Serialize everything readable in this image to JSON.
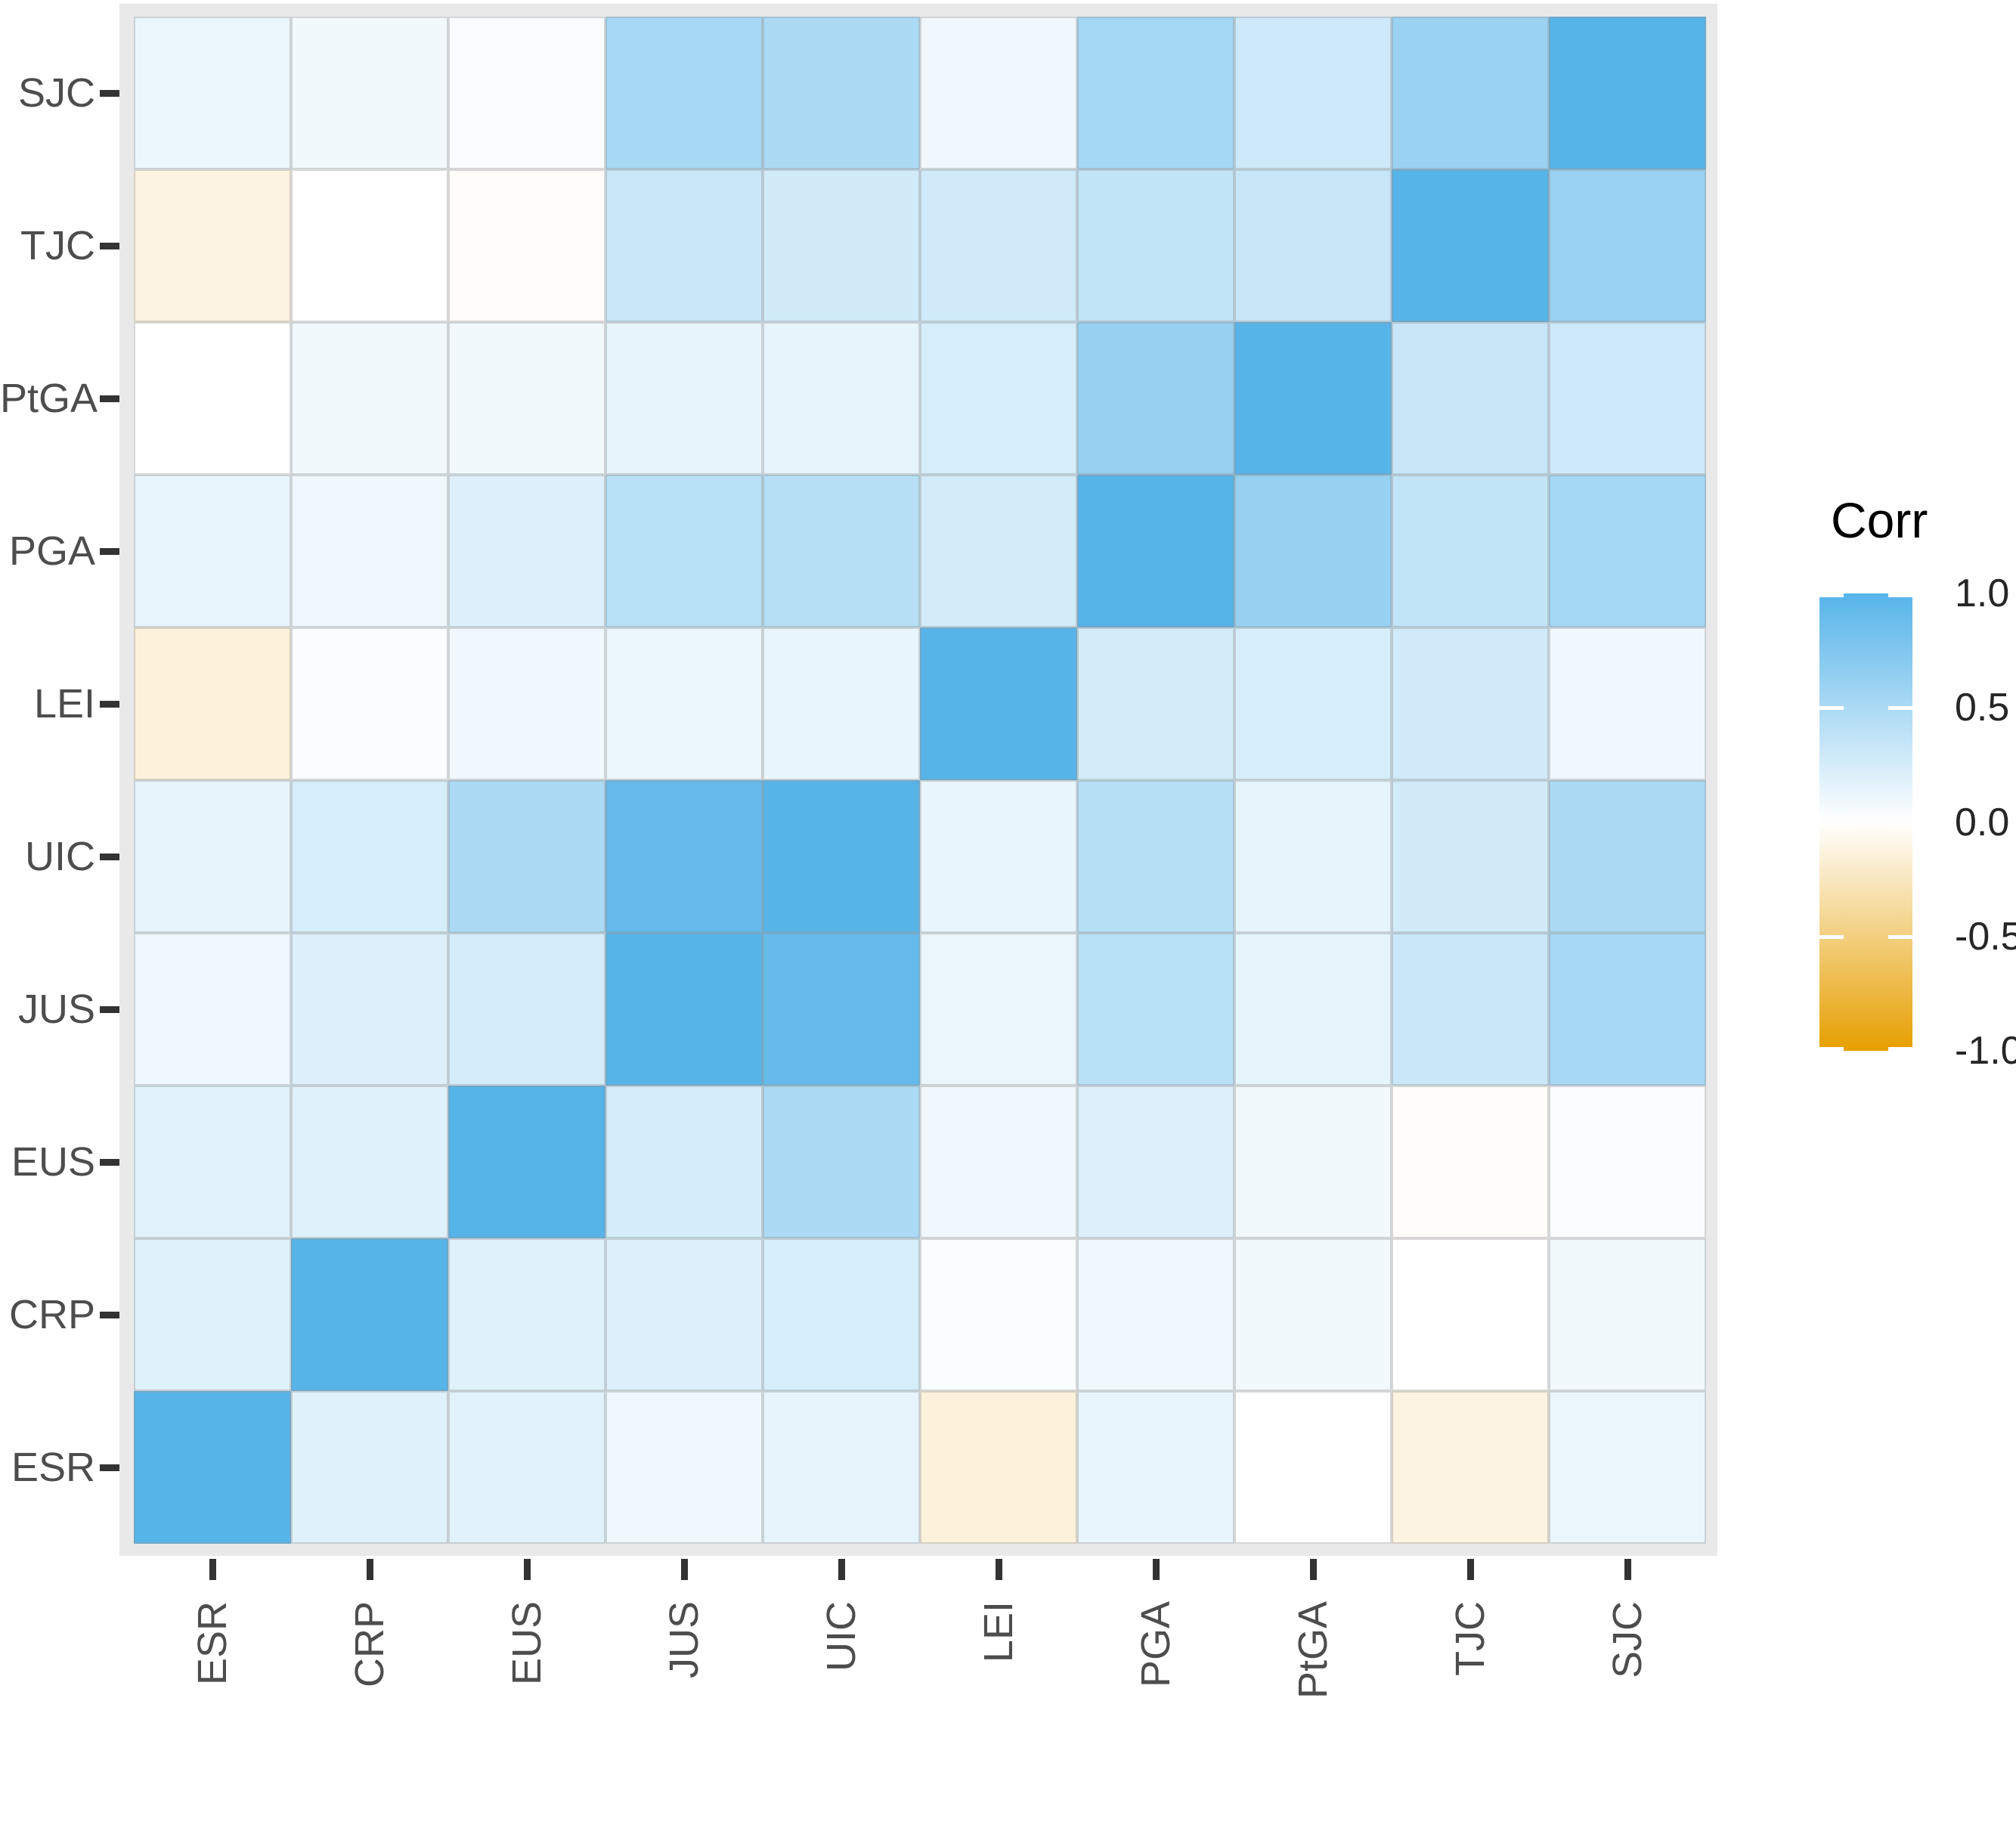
{
  "chart_data": {
    "type": "heatmap",
    "title": "",
    "legend_title": "Corr",
    "x_categories": [
      "ESR",
      "CRP",
      "EUS",
      "JUS",
      "UIC",
      "LEI",
      "PGA",
      "PtGA",
      "TJC",
      "SJC"
    ],
    "y_categories": [
      "SJC",
      "TJC",
      "PtGA",
      "PGA",
      "LEI",
      "UIC",
      "JUS",
      "EUS",
      "CRP",
      "ESR"
    ],
    "matrix": [
      [
        0.12,
        0.08,
        0.03,
        0.52,
        0.49,
        0.09,
        0.54,
        0.29,
        0.6,
        1.0
      ],
      [
        -0.12,
        0.0,
        -0.02,
        0.32,
        0.27,
        0.28,
        0.36,
        0.33,
        1.0,
        0.6
      ],
      [
        0.0,
        0.08,
        0.08,
        0.15,
        0.15,
        0.24,
        0.62,
        1.0,
        0.33,
        0.29
      ],
      [
        0.13,
        0.1,
        0.2,
        0.42,
        0.43,
        0.26,
        1.0,
        0.62,
        0.36,
        0.54
      ],
      [
        -0.14,
        0.03,
        0.09,
        0.12,
        0.13,
        1.0,
        0.26,
        0.24,
        0.28,
        0.09
      ],
      [
        0.15,
        0.24,
        0.49,
        0.92,
        1.0,
        0.13,
        0.43,
        0.15,
        0.27,
        0.49
      ],
      [
        0.1,
        0.21,
        0.25,
        1.0,
        0.92,
        0.12,
        0.42,
        0.15,
        0.32,
        0.52
      ],
      [
        0.17,
        0.19,
        1.0,
        0.25,
        0.49,
        0.09,
        0.2,
        0.08,
        -0.02,
        0.03
      ],
      [
        0.19,
        1.0,
        0.19,
        0.21,
        0.24,
        0.03,
        0.1,
        0.08,
        0.0,
        0.08
      ],
      [
        1.0,
        0.19,
        0.17,
        0.1,
        0.15,
        -0.14,
        0.13,
        0.0,
        -0.12,
        0.12
      ]
    ],
    "colorscale": {
      "min": -1.0,
      "mid": 0.0,
      "max": 1.0,
      "high_color": "#56B4E9",
      "mid_color": "#FFFFFF",
      "low_color": "#E69F00"
    },
    "legend_ticks": [
      {
        "label": "1.0",
        "value": 1.0
      },
      {
        "label": "0.5",
        "value": 0.5
      },
      {
        "label": "0.0",
        "value": 0.0
      },
      {
        "label": "-0.5",
        "value": -0.5
      },
      {
        "label": "-1.0",
        "value": -1.0
      }
    ],
    "layout_hints": {
      "legend_position": "right",
      "x_labels_rotated_degrees": 90,
      "panel_background": "#E9E9E9",
      "axis_text_color": "#4D4D4D",
      "tick_color": "#333333"
    }
  }
}
